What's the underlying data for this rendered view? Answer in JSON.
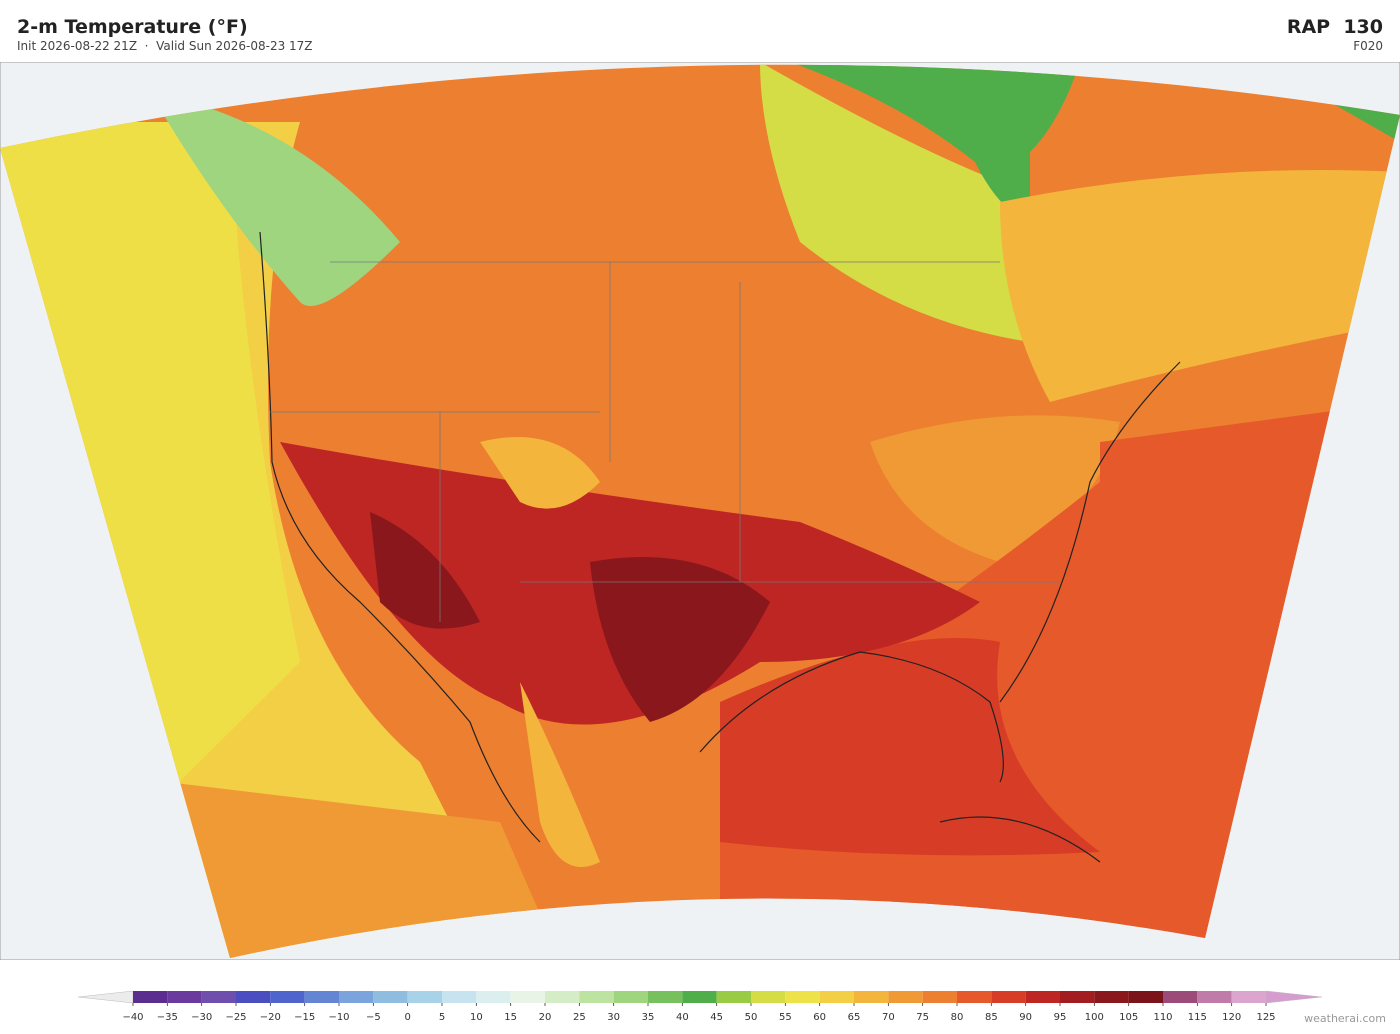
{
  "header": {
    "title": "2-m Temperature (°F)",
    "subtitle": "Init 2026-08-22 21Z  ·  Valid Sun 2026-08-23 17Z",
    "model": "RAP  130",
    "forecast_hour": "F020"
  },
  "colorbar": {
    "ticks": [
      {
        "value": -40,
        "label": "−40"
      },
      {
        "value": -35,
        "label": "−35"
      },
      {
        "value": -30,
        "label": "−30"
      },
      {
        "value": -25,
        "label": "−25"
      },
      {
        "value": -20,
        "label": "−20"
      },
      {
        "value": -15,
        "label": "−15"
      },
      {
        "value": -10,
        "label": "−10"
      },
      {
        "value": -5,
        "label": "−5"
      },
      0,
      5,
      10,
      15,
      20,
      25,
      30,
      35,
      40,
      45,
      50,
      55,
      60,
      65,
      70,
      75,
      80,
      85,
      90,
      95,
      100,
      105,
      110,
      115,
      120,
      125
    ],
    "colors": [
      "#5b2d8f",
      "#6a3a9e",
      "#6f4fae",
      "#4a4ec0",
      "#4f64cc",
      "#6485d3",
      "#7ba3dc",
      "#8ebde0",
      "#a8d2e8",
      "#c6e3ef",
      "#dcefef",
      "#e8f5e6",
      "#d5edc6",
      "#bde3a0",
      "#9fd57f",
      "#76c15e",
      "#4fad4a",
      "#9acb45",
      "#d4dc46",
      "#ede247",
      "#f2cf45",
      "#f3b53c",
      "#f09a36",
      "#ec7f30",
      "#e6592a",
      "#d73d26",
      "#be2623",
      "#a31c20",
      "#8a171c",
      "#7a141a",
      "#9b4a7a",
      "#c07bab",
      "#dba5cf"
    ],
    "under_color": "#ececec",
    "over_color": "#d79ccf"
  },
  "footer": {
    "credit": "weatherai.com"
  }
}
